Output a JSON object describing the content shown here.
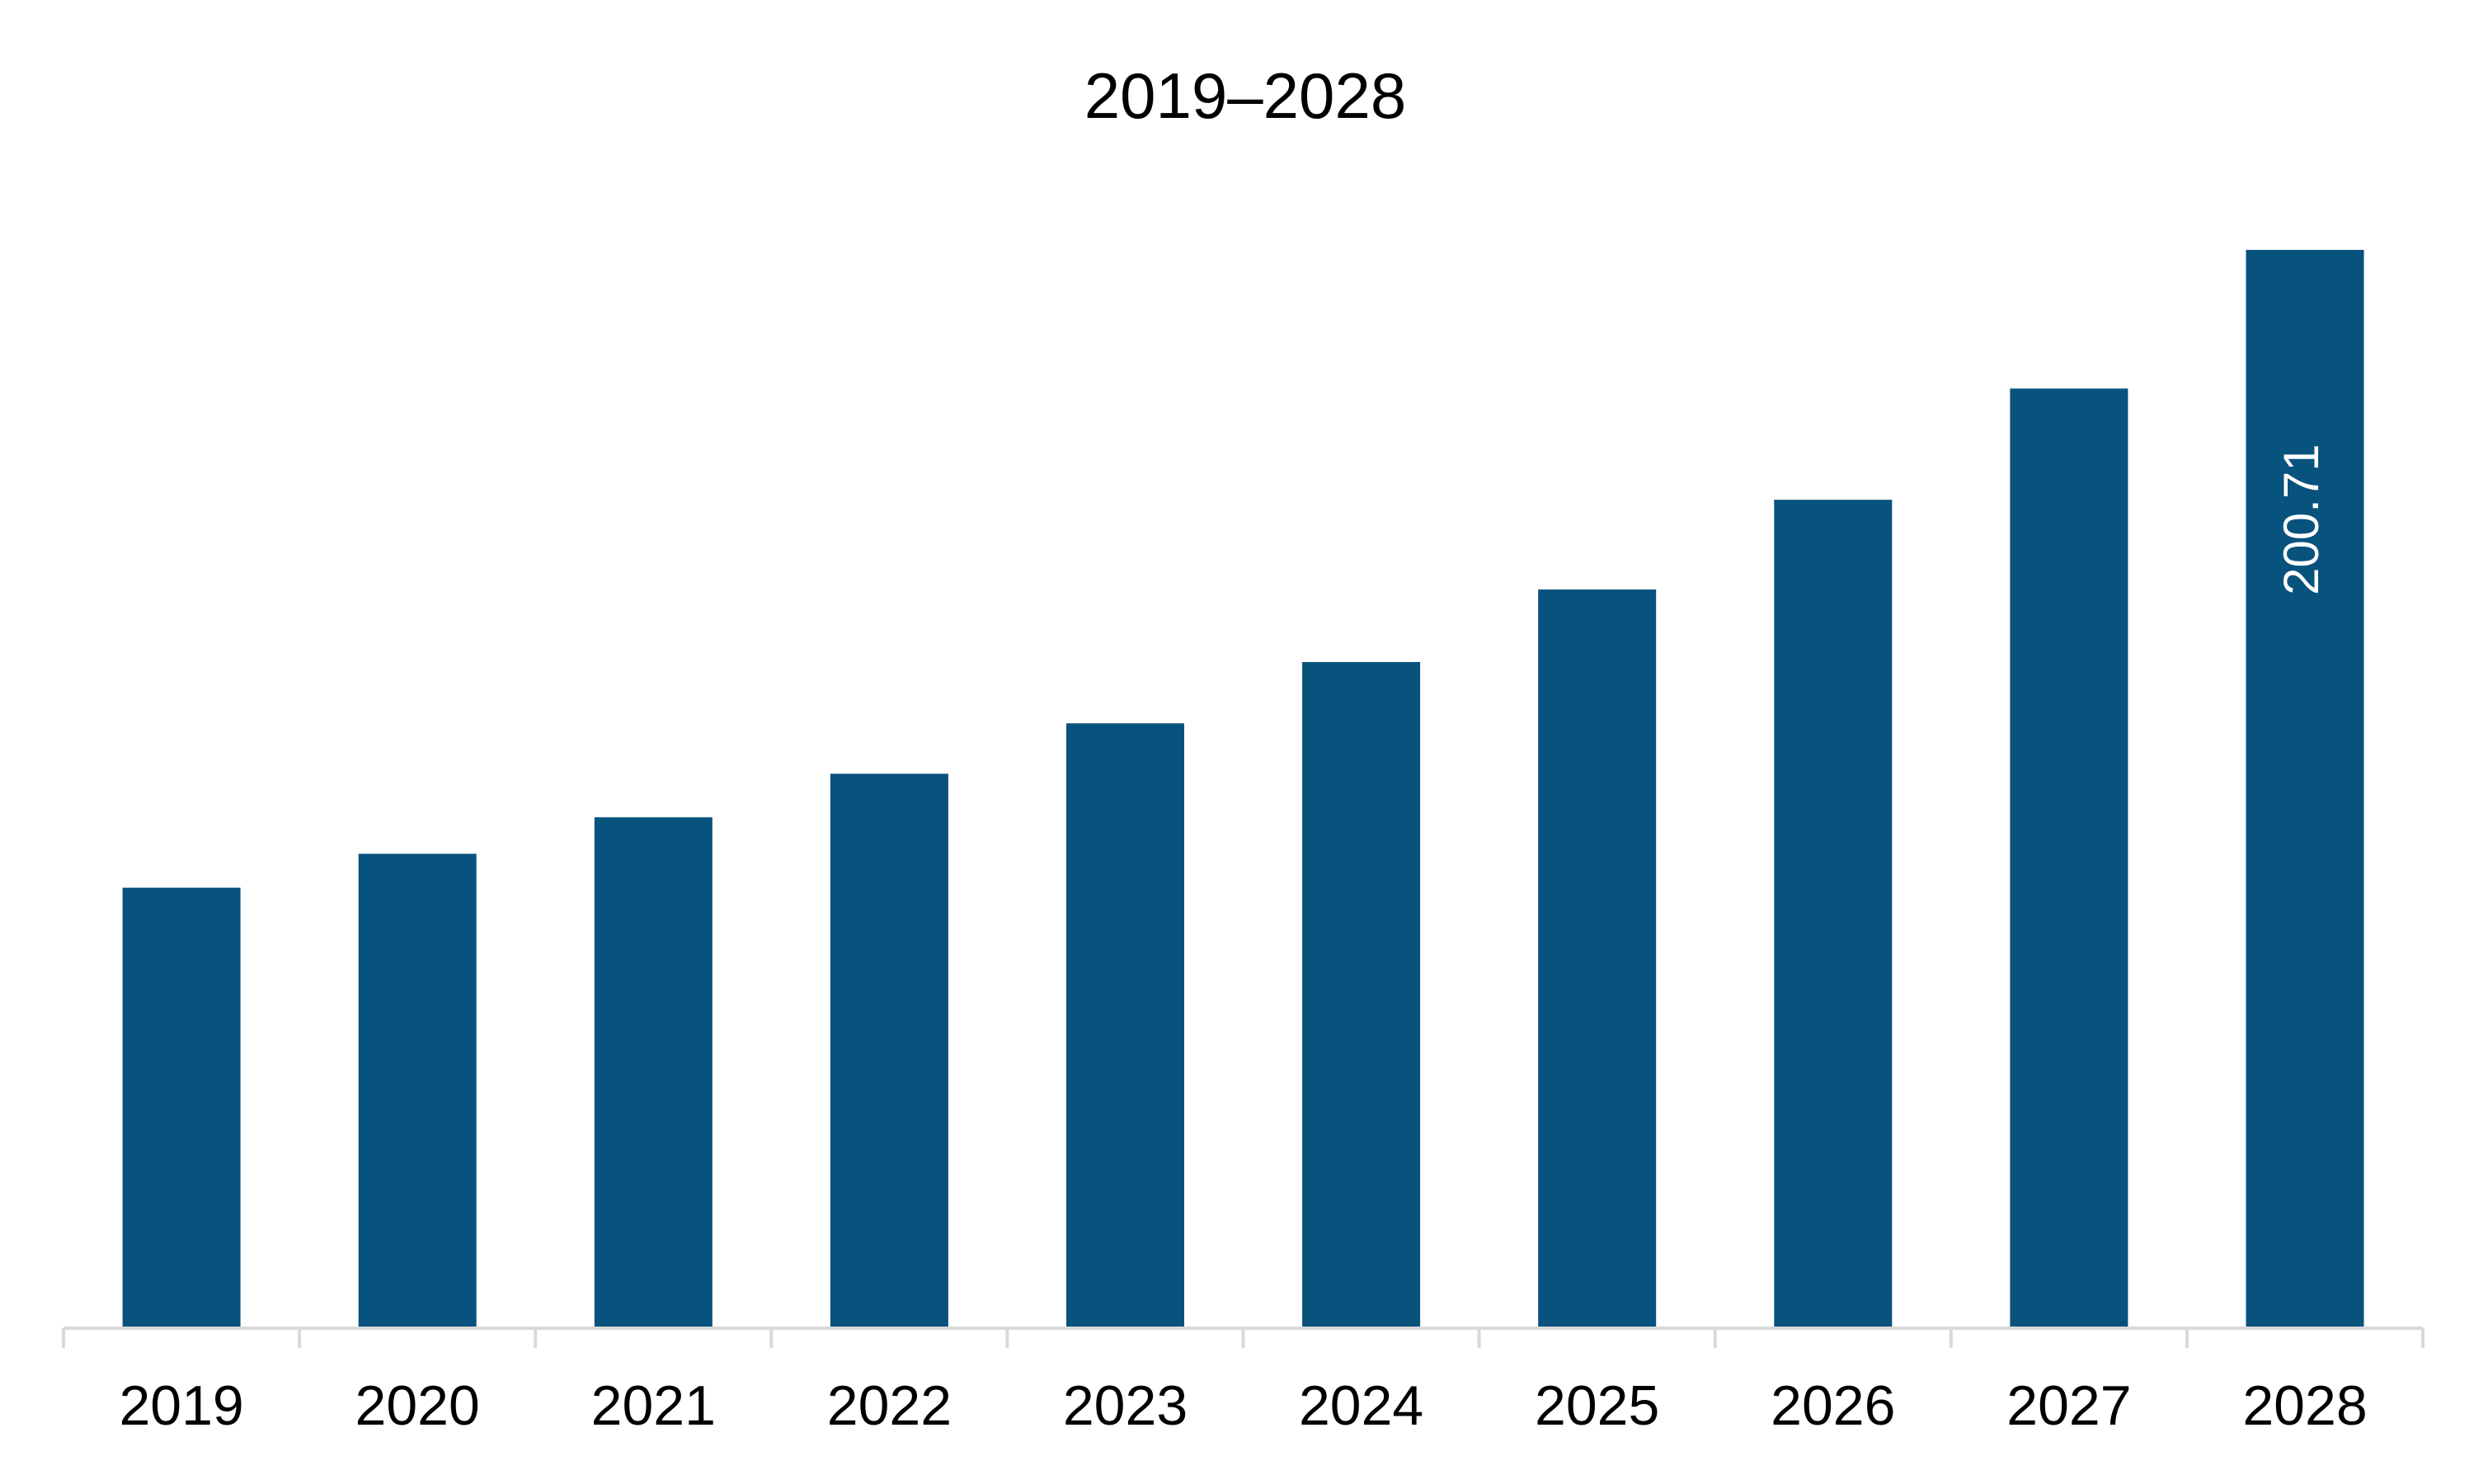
{
  "chart_data": {
    "type": "bar",
    "title": "2019–2028",
    "xlabel": "",
    "ylabel": "",
    "categories": [
      "2019",
      "2020",
      "2021",
      "2022",
      "2023",
      "2024",
      "2025",
      "2026",
      "2027",
      "2028"
    ],
    "values": [
      82.0,
      88.3,
      95.1,
      103.2,
      112.6,
      124.0,
      137.5,
      154.2,
      174.9,
      200.71
    ],
    "ylim": [
      0,
      215
    ],
    "grid": false,
    "legend": "none",
    "data_labels": [
      {
        "category": "2028",
        "text": "200.71",
        "orientation": "vertical"
      }
    ],
    "colors": {
      "bar": "#08527E",
      "axis": "#D9D9D9",
      "data_label": "#FFFFFF"
    }
  }
}
